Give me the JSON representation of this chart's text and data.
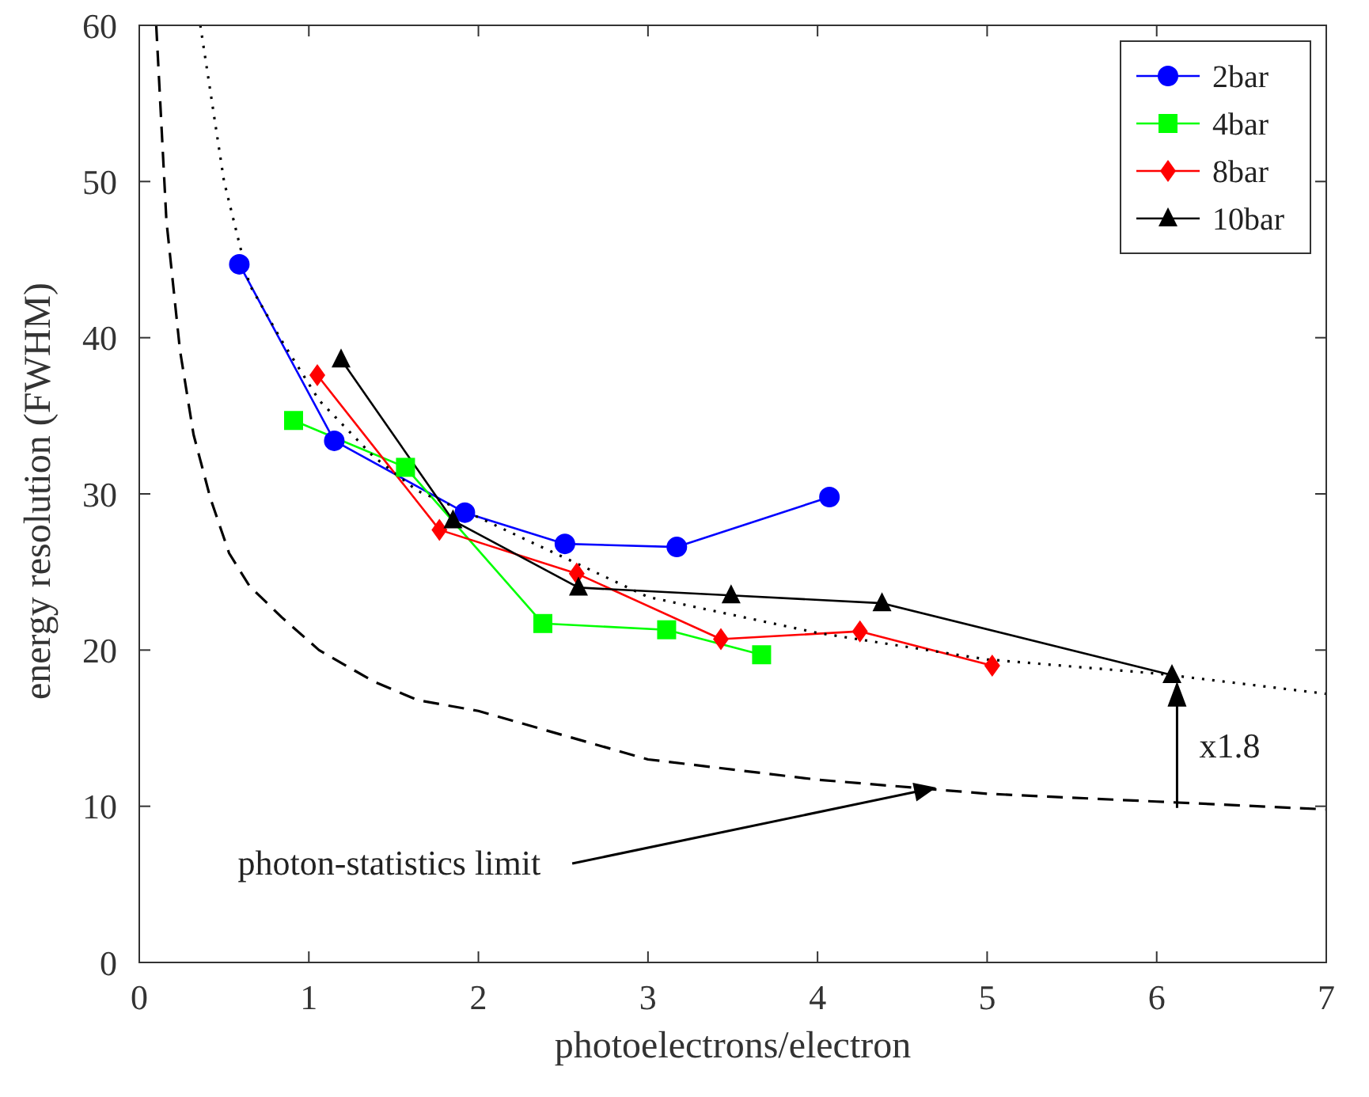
{
  "chart_data": {
    "type": "line",
    "xlabel": "photoelectrons/electron",
    "ylabel": "energy resolution (FWHM)",
    "xlim": [
      0,
      7
    ],
    "xticks": [
      0,
      1,
      2,
      3,
      4,
      5,
      6,
      7
    ],
    "ylim": [
      0,
      60
    ],
    "yticks": [
      0,
      10,
      20,
      30,
      40,
      50,
      60
    ],
    "grid": false,
    "legend": "top right",
    "series": [
      {
        "name": "2bar",
        "color": "#0000ff",
        "marker": "circle",
        "line_style": "solid",
        "x": [
          0.59,
          1.15,
          1.92,
          2.51,
          3.17,
          4.07
        ],
        "values": [
          44.7,
          33.4,
          28.8,
          26.8,
          26.6,
          29.8
        ]
      },
      {
        "name": "4bar",
        "color": "#00ff00",
        "marker": "square",
        "line_style": "solid",
        "x": [
          0.91,
          1.57,
          2.38,
          3.11,
          3.67
        ],
        "values": [
          34.7,
          31.7,
          21.7,
          21.3,
          19.7
        ]
      },
      {
        "name": "8bar",
        "color": "#ff0000",
        "marker": "diamond",
        "line_style": "solid",
        "x": [
          1.05,
          1.77,
          2.58,
          3.43,
          4.25,
          5.03
        ],
        "values": [
          37.6,
          27.7,
          24.9,
          20.7,
          21.2,
          19.0
        ]
      },
      {
        "name": "10bar",
        "color": "#000000",
        "marker": "triangle",
        "line_style": "solid",
        "x": [
          1.19,
          1.85,
          2.59,
          3.49,
          4.38,
          6.09
        ],
        "values": [
          38.6,
          28.3,
          24.0,
          23.5,
          23.0,
          18.4
        ]
      },
      {
        "color": "#000000",
        "marker": "none",
        "line_style": "dashed",
        "x": [
          0.1,
          0.16,
          0.24,
          0.32,
          0.42,
          0.53,
          0.65,
          0.84,
          1.06,
          1.38,
          1.64,
          2,
          3,
          4,
          5,
          6,
          7
        ],
        "values": [
          60,
          47.5,
          39.2,
          33.8,
          29.7,
          26.2,
          24.1,
          22.1,
          20.0,
          18.0,
          16.8,
          16.1,
          13.0,
          11.7,
          10.8,
          10.3,
          9.8
        ]
      },
      {
        "color": "#000000",
        "marker": "none",
        "line_style": "dotted",
        "x": [
          0.36,
          0.5,
          0.65,
          0.84,
          1.06,
          1.38,
          1.64,
          2,
          3,
          4,
          5,
          6,
          7
        ],
        "values": [
          60,
          50,
          43.4,
          39.8,
          36,
          32.4,
          30.2,
          28.5,
          23.4,
          21.1,
          19.4,
          18.5,
          17.2
        ]
      }
    ],
    "annotations": [
      {
        "text": "photon-statistics limit",
        "x": 4.7,
        "y": 11.2
      },
      {
        "text": "x1.8",
        "x": 6.12,
        "y": 18.0
      }
    ]
  }
}
